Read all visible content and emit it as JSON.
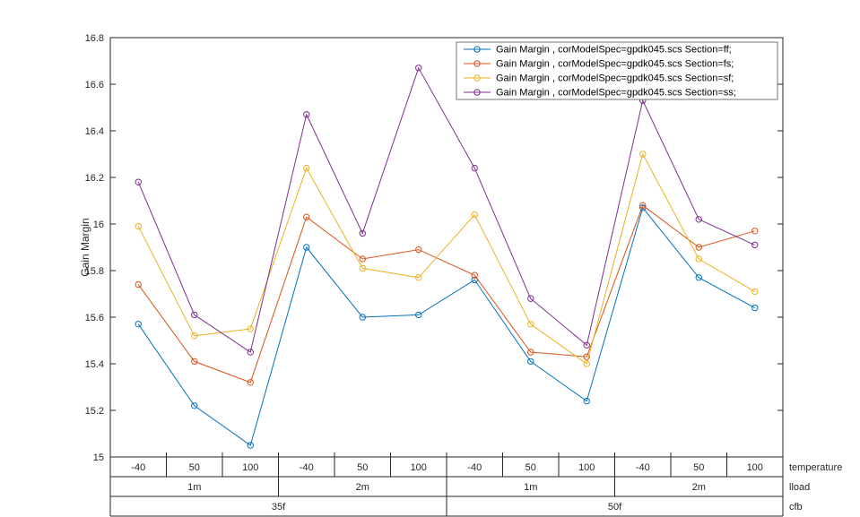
{
  "figure": {
    "background": "#ffffff"
  },
  "chart_data": {
    "type": "line",
    "title": "",
    "ylabel": "Gain Margin",
    "ylim": [
      15,
      16.8
    ],
    "ytick_step": 0.2,
    "yticks": [
      "15",
      "15.2",
      "15.4",
      "15.6",
      "15.8",
      "16",
      "16.2",
      "16.4",
      "16.6",
      "16.8"
    ],
    "grid": false,
    "marker": "o",
    "legend": {
      "position": "top-right",
      "border_color": "#737373"
    },
    "x": {
      "temperature": [
        "-40",
        "50",
        "100",
        "-40",
        "50",
        "100",
        "-40",
        "50",
        "100",
        "-40",
        "50",
        "100"
      ],
      "lload": [
        "1m",
        "2m",
        "1m",
        "2m"
      ],
      "cfb": [
        "35f",
        "50f"
      ],
      "row_labels": [
        "temperature",
        "lload",
        "cfb"
      ]
    },
    "series": [
      {
        "name": "Gain Margin , corModelSpec=gpdk045.scs Section=ff;",
        "section": "ff",
        "color": "#0072BD",
        "values": [
          15.57,
          15.22,
          15.05,
          15.9,
          15.6,
          15.61,
          15.76,
          15.41,
          15.24,
          16.07,
          15.77,
          15.64
        ]
      },
      {
        "name": "Gain Margin , corModelSpec=gpdk045.scs Section=fs;",
        "section": "fs",
        "color": "#D95319",
        "values": [
          15.74,
          15.41,
          15.32,
          16.03,
          15.85,
          15.89,
          15.78,
          15.45,
          15.43,
          16.08,
          15.9,
          15.97
        ]
      },
      {
        "name": "Gain Margin , corModelSpec=gpdk045.scs Section=sf;",
        "section": "sf",
        "color": "#EDB120",
        "values": [
          15.99,
          15.52,
          15.55,
          16.24,
          15.81,
          15.77,
          16.04,
          15.57,
          15.4,
          16.3,
          15.85,
          15.71
        ]
      },
      {
        "name": "Gain Margin , corModelSpec=gpdk045.scs Section=ss;",
        "section": "ss",
        "color": "#7E2F8E",
        "values": [
          16.18,
          15.61,
          15.45,
          16.47,
          15.96,
          16.67,
          16.24,
          15.68,
          15.48,
          16.53,
          16.02,
          15.91
        ]
      }
    ]
  }
}
